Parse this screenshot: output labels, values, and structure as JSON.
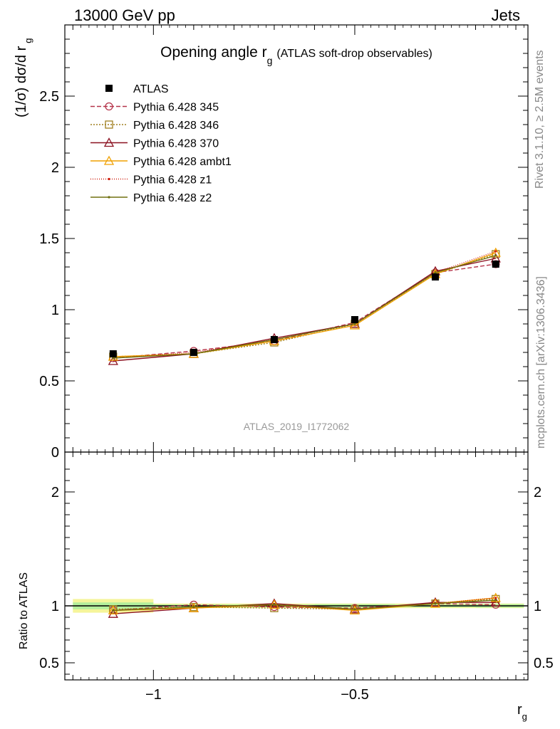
{
  "header": {
    "energy_label": "13000 GeV pp",
    "process_label": "Jets",
    "side_label_top": "Rivet 3.1.10, ≥ 2.5M events",
    "side_label_bottom": "mcplots.cern.ch [arXiv:1306.3436]",
    "watermark": "ATLAS_2019_I1772062"
  },
  "chart_data": [
    {
      "type": "line",
      "title_main": "Opening angle r",
      "title_sub": "g",
      "title_extra": "(ATLAS soft-drop observables)",
      "ylabel_main": "(1/σ) dσ/d r",
      "ylabel_sub": "g",
      "ylim": [
        0,
        3.0
      ],
      "yticks": [
        0,
        0.5,
        1,
        1.5,
        2,
        2.5
      ],
      "ytick_labels": [
        "0",
        "0.5",
        "1",
        "1.5",
        "2",
        "2.5"
      ],
      "x": [
        -1.1,
        -0.9,
        -0.7,
        -0.5,
        -0.3,
        -0.15
      ],
      "legend_position": "top-left",
      "data": {
        "name": "ATLAS",
        "values": [
          0.69,
          0.7,
          0.79,
          0.93,
          1.23,
          1.32
        ],
        "color": "#000000"
      },
      "series": [
        {
          "name": "Pythia 6.428 345",
          "color": "#b5344a",
          "dash": "6,3",
          "marker": "circle",
          "values": [
            0.66,
            0.71,
            0.78,
            0.91,
            1.26,
            1.32
          ]
        },
        {
          "name": "Pythia 6.428 346",
          "color": "#a08020",
          "dash": "2,2",
          "marker": "square",
          "values": [
            0.67,
            0.69,
            0.77,
            0.9,
            1.25,
            1.39
          ]
        },
        {
          "name": "Pythia 6.428 370",
          "color": "#8b1020",
          "dash": "",
          "marker": "triangle",
          "values": [
            0.64,
            0.69,
            0.8,
            0.9,
            1.27,
            1.36
          ]
        },
        {
          "name": "Pythia 6.428 ambt1",
          "color": "#f0a000",
          "dash": "",
          "marker": "triangle",
          "values": [
            0.67,
            0.69,
            0.78,
            0.89,
            1.25,
            1.4
          ]
        },
        {
          "name": "Pythia 6.428 z1",
          "color": "#d02010",
          "dash": "1,2",
          "marker": "dot",
          "values": [
            0.66,
            0.7,
            0.79,
            0.9,
            1.26,
            1.41
          ]
        },
        {
          "name": "Pythia 6.428 z2",
          "color": "#707010",
          "dash": "",
          "marker": "dot",
          "values": [
            0.66,
            0.69,
            0.79,
            0.9,
            1.26,
            1.38
          ]
        }
      ]
    },
    {
      "type": "line",
      "ylabel": "Ratio to ATLAS",
      "xlabel_main": "r",
      "xlabel_sub": "g",
      "xlim": [
        -1.22,
        -0.07
      ],
      "ylim": [
        0.35,
        2.35
      ],
      "yticks": [
        0.5,
        1,
        2
      ],
      "ytick_labels": [
        "0.5",
        "1",
        "2"
      ],
      "xticks": [
        -1,
        -0.5
      ],
      "xtick_labels": [
        "−1",
        "−0.5"
      ],
      "x": [
        -1.1,
        -0.9,
        -0.7,
        -0.5,
        -0.3,
        -0.15
      ],
      "series": [
        {
          "name": "Pythia 6.428 345",
          "values": [
            0.96,
            1.01,
            0.99,
            0.98,
            1.02,
            1.01
          ]
        },
        {
          "name": "Pythia 6.428 346",
          "values": [
            0.97,
            0.99,
            0.98,
            0.97,
            1.02,
            1.06
          ]
        },
        {
          "name": "Pythia 6.428 370",
          "values": [
            0.93,
            0.98,
            1.02,
            0.97,
            1.03,
            1.03
          ]
        },
        {
          "name": "Pythia 6.428 ambt1",
          "values": [
            0.96,
            0.98,
            1.01,
            0.96,
            1.02,
            1.07
          ]
        },
        {
          "name": "Pythia 6.428 z1",
          "values": [
            0.96,
            0.99,
            1.0,
            0.97,
            1.02,
            1.07
          ]
        },
        {
          "name": "Pythia 6.428 z2",
          "values": [
            0.96,
            0.99,
            1.01,
            0.97,
            1.02,
            1.05
          ]
        }
      ]
    }
  ]
}
